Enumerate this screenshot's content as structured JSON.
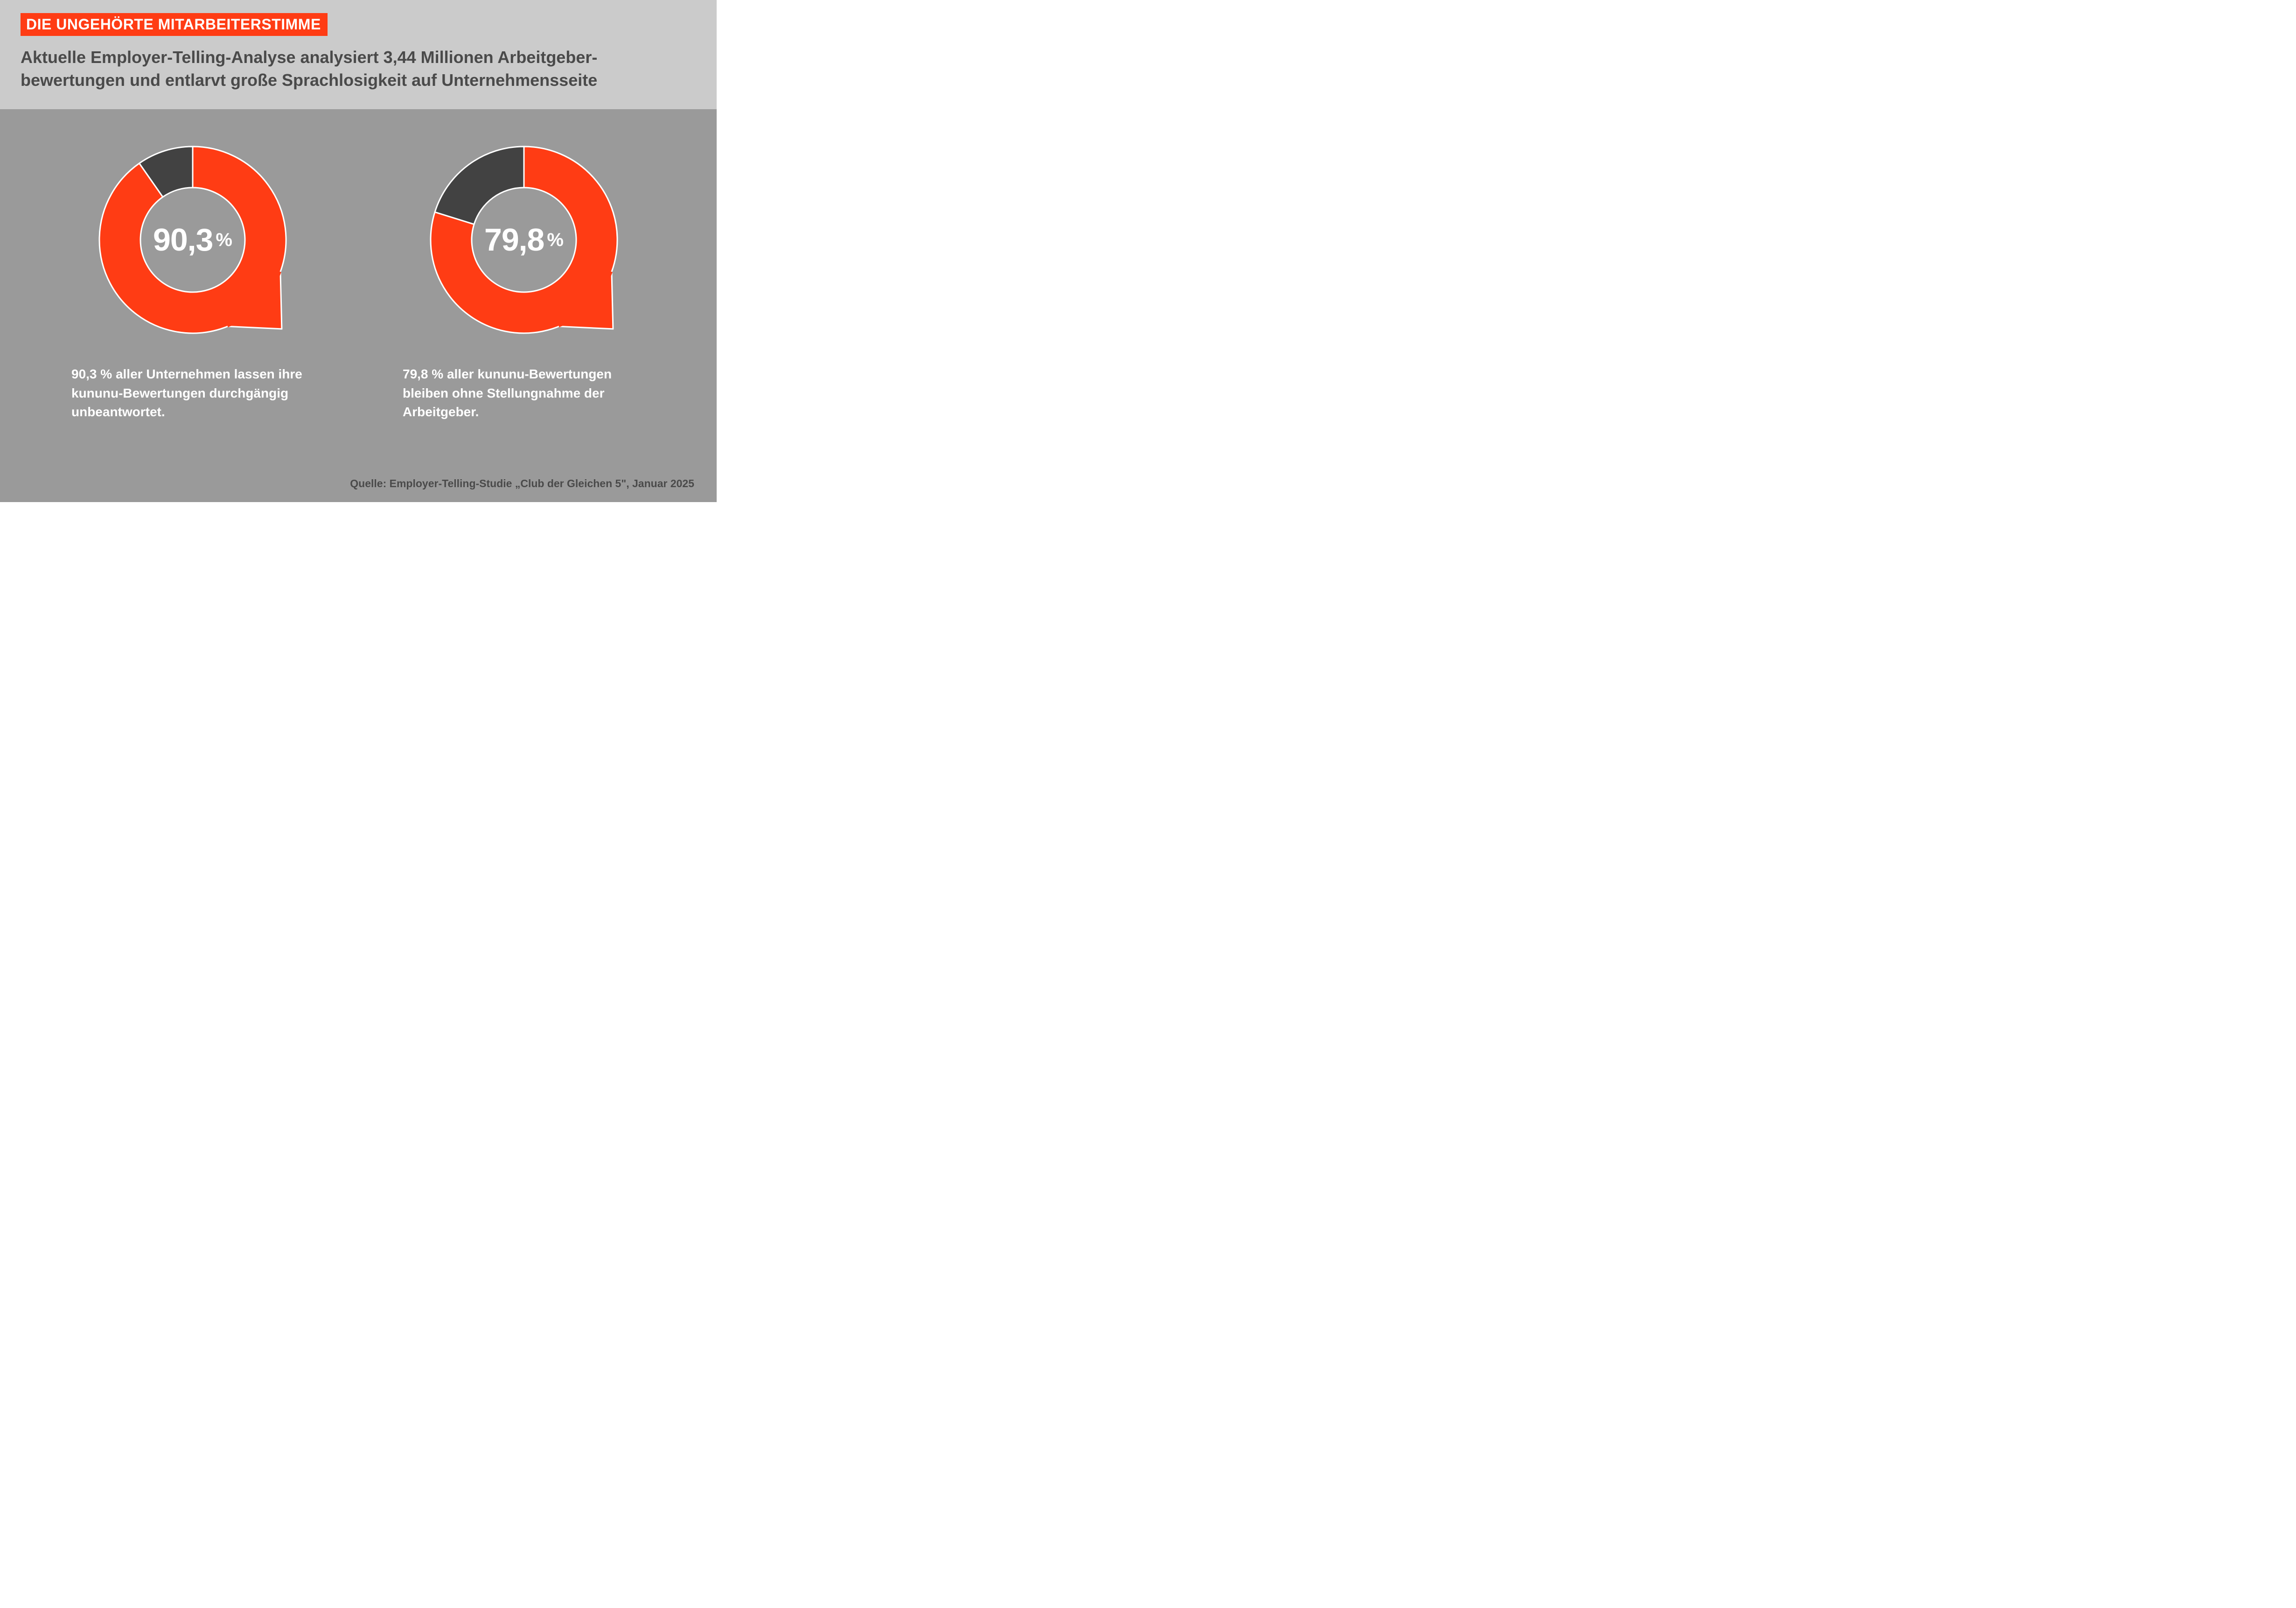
{
  "colors": {
    "page_bg": "#9a9a9a",
    "header_bg": "#cbcbcb",
    "title_bg": "#ff3c14",
    "title_text": "#ffffff",
    "subtitle_text": "#4a4a4a",
    "donut_primary": "#ff3c14",
    "donut_remainder": "#424242",
    "donut_stroke": "#ffffff",
    "caption_text": "#ffffff",
    "source_text": "#4a4a4a"
  },
  "header": {
    "title": "DIE UNGEHÖRTE MITARBEITERSTIMME",
    "subtitle": "Aktuelle Employer-Telling-Analyse analysiert 3,44 Millionen Arbeitgeber­bewertungen und entlarvt große Sprachlosigkeit auf Unternehmensseite"
  },
  "charts": [
    {
      "type": "donut",
      "value_percent": 90.3,
      "center_value": "90,3",
      "center_unit": "%",
      "caption": "90,3 % aller Unternehmen lassen ihre kununu-Bewertungen durchgängig unbeantwortet.",
      "donut_thickness": 88,
      "outer_radius": 200,
      "start_angle_deg": -90,
      "direction": "clockwise",
      "outline_width": 3,
      "tail": true
    },
    {
      "type": "donut",
      "value_percent": 79.8,
      "center_value": "79,8",
      "center_unit": "%",
      "caption": "79,8 % aller kununu-Bewertungen bleiben ohne Stellungnahme der Arbeitgeber.",
      "donut_thickness": 88,
      "outer_radius": 200,
      "start_angle_deg": -90,
      "direction": "clockwise",
      "outline_width": 3,
      "tail": true
    }
  ],
  "source": "Quelle: Employer-Telling-Studie „Club der Gleichen 5\", Januar 2025",
  "typography": {
    "title_fontsize": 32,
    "subtitle_fontsize": 36,
    "center_num_fontsize": 68,
    "center_unit_fontsize": 40,
    "caption_fontsize": 28,
    "source_fontsize": 23,
    "font_family": "Helvetica Neue / Arial"
  }
}
